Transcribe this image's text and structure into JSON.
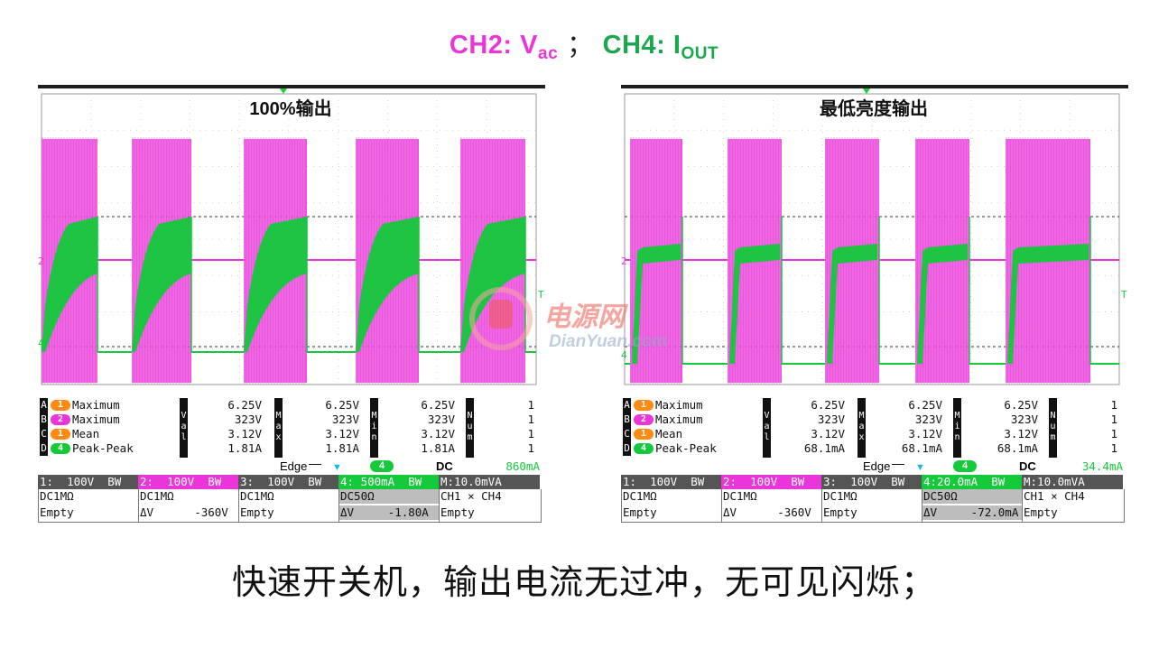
{
  "title": {
    "ch2": "CH2: V",
    "ch2_sub": "ac",
    "separator": "；",
    "ch4": "CH4: I",
    "ch4_sub": "OUT"
  },
  "caption": "快速开关机，输出电流无过冲，无可见闪烁；",
  "watermark": {
    "cn": "电源网",
    "en": "DianYuan.com"
  },
  "colors": {
    "ch1": "#ff8a10",
    "ch2": "#e935d9",
    "ch4": "#14c93a",
    "green_text": "#1aa84c"
  },
  "scopes": [
    {
      "label": "100%输出",
      "waveform": "pulsed_high_load",
      "measurements": [
        {
          "letter": "A",
          "ch": "1",
          "ch_color": "#ff8a10",
          "name": "Maximum",
          "values": [
            "6.25V",
            "6.25V",
            "6.25V"
          ],
          "num": "1"
        },
        {
          "letter": "B",
          "ch": "2",
          "ch_color": "#e935d9",
          "name": "Maximum",
          "values": [
            "323V",
            "323V",
            "323V"
          ],
          "num": "1"
        },
        {
          "letter": "C",
          "ch": "1",
          "ch_color": "#ff8a10",
          "name": "Mean",
          "values": [
            "3.12V",
            "3.12V",
            "3.12V"
          ],
          "num": "1"
        },
        {
          "letter": "D",
          "ch": "4",
          "ch_color": "#14c93a",
          "name": "Peak-Peak",
          "values": [
            "1.81A",
            "1.81A",
            "1.81A"
          ],
          "num": "1"
        }
      ],
      "col_labels": [
        "Val",
        "Max",
        "Min",
        "Num"
      ],
      "trigger": {
        "mode": "Edge",
        "source": "4",
        "coupling": "DC",
        "level": "860mA"
      },
      "channels": [
        {
          "header": "1:  100V  BW",
          "bg": "#555555",
          "row1": "DC1MΩ",
          "row2": "Empty"
        },
        {
          "header": "2:  100V  BW",
          "bg": "#e935d9",
          "row1": "DC1MΩ",
          "row2": "ΔV      -360V"
        },
        {
          "header": "3:  100V  BW",
          "bg": "#555555",
          "row1": "DC1MΩ",
          "row2": "Empty"
        },
        {
          "header": "4: 500mA  BW",
          "bg": "#14c93a",
          "row1": "DC50Ω",
          "row2": "ΔV     -1.80A"
        },
        {
          "header": "M:10.0mVA",
          "bg": "#555555",
          "row1": "CH1 × CH4",
          "row2": "Empty"
        }
      ]
    },
    {
      "label": "最低亮度输出",
      "waveform": "pulsed_low_load",
      "measurements": [
        {
          "letter": "A",
          "ch": "1",
          "ch_color": "#ff8a10",
          "name": "Maximum",
          "values": [
            "6.25V",
            "6.25V",
            "6.25V"
          ],
          "num": "1"
        },
        {
          "letter": "B",
          "ch": "2",
          "ch_color": "#e935d9",
          "name": "Maximum",
          "values": [
            "323V",
            "323V",
            "323V"
          ],
          "num": "1"
        },
        {
          "letter": "C",
          "ch": "1",
          "ch_color": "#ff8a10",
          "name": "Mean",
          "values": [
            "3.12V",
            "3.12V",
            "3.12V"
          ],
          "num": "1"
        },
        {
          "letter": "D",
          "ch": "4",
          "ch_color": "#14c93a",
          "name": "Peak-Peak",
          "values": [
            "68.1mA",
            "68.1mA",
            "68.1mA"
          ],
          "num": "1"
        }
      ],
      "col_labels": [
        "Val",
        "Max",
        "Min",
        "Num"
      ],
      "trigger": {
        "mode": "Edge",
        "source": "4",
        "coupling": "DC",
        "level": "34.4mA"
      },
      "channels": [
        {
          "header": "1:  100V  BW",
          "bg": "#555555",
          "row1": "DC1MΩ",
          "row2": "Empty"
        },
        {
          "header": "2:  100V  BW",
          "bg": "#e935d9",
          "row1": "DC1MΩ",
          "row2": "ΔV      -360V"
        },
        {
          "header": "3:  100V  BW",
          "bg": "#555555",
          "row1": "DC1MΩ",
          "row2": "Empty"
        },
        {
          "header": "4:20.0mA  BW",
          "bg": "#14c93a",
          "row1": "DC50Ω",
          "row2": "ΔV     -72.0mA"
        },
        {
          "header": "M:10.0mVA",
          "bg": "#555555",
          "row1": "CH1 × CH4",
          "row2": "Empty"
        }
      ]
    }
  ]
}
